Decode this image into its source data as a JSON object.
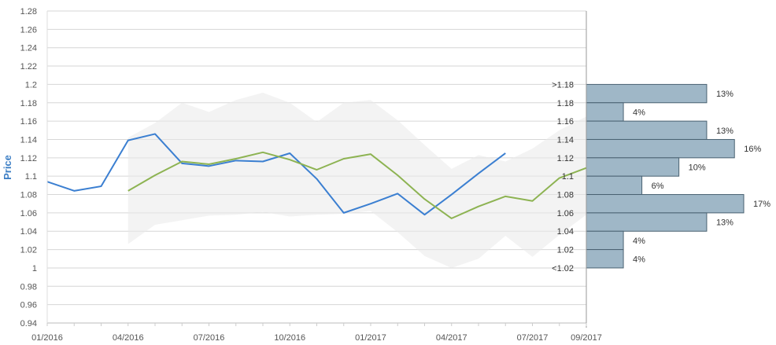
{
  "chart_data": {
    "type": "line",
    "ylabel": "Price",
    "ylim": [
      0.94,
      1.28
    ],
    "y_ticks": [
      "0.94",
      "0.96",
      "0.98",
      "1",
      "1.02",
      "1.04",
      "1.06",
      "1.08",
      "1.1",
      "1.12",
      "1.14",
      "1.16",
      "1.18",
      "1.2",
      "1.22",
      "1.24",
      "1.26",
      "1.28"
    ],
    "x_ticks": [
      {
        "label": "01/2016",
        "month": 0
      },
      {
        "label": "04/2016",
        "month": 3
      },
      {
        "label": "07/2016",
        "month": 6
      },
      {
        "label": "10/2016",
        "month": 9
      },
      {
        "label": "01/2017",
        "month": 12
      },
      {
        "label": "04/2017",
        "month": 15
      },
      {
        "label": "07/2017",
        "month": 18
      },
      {
        "label": "09/2017",
        "month": 20
      }
    ],
    "grid": "horizontal",
    "series": [
      {
        "color": "#3b7fd1",
        "points": [
          [
            "01/2016",
            1.094
          ],
          [
            "02/2016",
            1.084
          ],
          [
            "03/2016",
            1.089
          ],
          [
            "04/2016",
            1.139
          ],
          [
            "05/2016",
            1.146
          ],
          [
            "06/2016",
            1.114
          ],
          [
            "07/2016",
            1.111
          ],
          [
            "08/2016",
            1.117
          ],
          [
            "09/2016",
            1.116
          ],
          [
            "10/2016",
            1.125
          ],
          [
            "11/2016",
            1.097
          ],
          [
            "12/2016",
            1.06
          ],
          [
            "01/2017",
            1.07
          ],
          [
            "02/2017",
            1.081
          ],
          [
            "03/2017",
            1.058
          ],
          [
            "04/2017",
            1.08
          ],
          [
            "05/2017",
            1.103
          ],
          [
            "06/2017",
            1.125
          ]
        ]
      },
      {
        "color": "#8db352",
        "points": [
          [
            "04/2016",
            1.084
          ],
          [
            "05/2016",
            1.101
          ],
          [
            "06/2016",
            1.116
          ],
          [
            "07/2016",
            1.113
          ],
          [
            "08/2016",
            1.119
          ],
          [
            "09/2016",
            1.126
          ],
          [
            "10/2016",
            1.118
          ],
          [
            "11/2016",
            1.107
          ],
          [
            "12/2016",
            1.119
          ],
          [
            "01/2017",
            1.124
          ],
          [
            "02/2017",
            1.101
          ],
          [
            "03/2017",
            1.075
          ],
          [
            "04/2017",
            1.054
          ],
          [
            "05/2017",
            1.067
          ],
          [
            "06/2017",
            1.078
          ],
          [
            "07/2017",
            1.073
          ],
          [
            "08/2017",
            1.098
          ],
          [
            "09/2017",
            1.109
          ]
        ]
      }
    ],
    "band": {
      "color": "#e9e9e9",
      "upper": [
        [
          "04/2016",
          1.142
        ],
        [
          "05/2016",
          1.158
        ],
        [
          "06/2016",
          1.18
        ],
        [
          "07/2016",
          1.17
        ],
        [
          "08/2016",
          1.183
        ],
        [
          "09/2016",
          1.191
        ],
        [
          "10/2016",
          1.18
        ],
        [
          "11/2016",
          1.159
        ],
        [
          "12/2016",
          1.18
        ],
        [
          "01/2017",
          1.183
        ],
        [
          "02/2017",
          1.161
        ],
        [
          "03/2017",
          1.134
        ],
        [
          "04/2017",
          1.108
        ],
        [
          "05/2017",
          1.123
        ],
        [
          "06/2017",
          1.116
        ],
        [
          "07/2017",
          1.13
        ],
        [
          "08/2017",
          1.15
        ],
        [
          "09/2017",
          1.165
        ]
      ],
      "lower": [
        [
          "04/2016",
          1.026
        ],
        [
          "05/2016",
          1.047
        ],
        [
          "06/2016",
          1.052
        ],
        [
          "07/2016",
          1.057
        ],
        [
          "08/2016",
          1.058
        ],
        [
          "09/2016",
          1.061
        ],
        [
          "10/2016",
          1.056
        ],
        [
          "11/2016",
          1.058
        ],
        [
          "12/2016",
          1.059
        ],
        [
          "01/2017",
          1.062
        ],
        [
          "02/2017",
          1.039
        ],
        [
          "03/2017",
          1.013
        ],
        [
          "04/2017",
          1.0
        ],
        [
          "05/2017",
          1.01
        ],
        [
          "06/2017",
          1.035
        ],
        [
          "07/2017",
          1.012
        ],
        [
          "08/2017",
          1.036
        ],
        [
          "09/2017",
          1.058
        ]
      ]
    },
    "histogram": {
      "color": "#9fb7c7",
      "bins": [
        {
          "label": ">1.18",
          "from": 1.18,
          "to": 1.2,
          "value": 13,
          "value_label": "13%"
        },
        {
          "label": "1.18",
          "from": 1.16,
          "to": 1.18,
          "value": 4,
          "value_label": "4%"
        },
        {
          "label": "1.16",
          "from": 1.14,
          "to": 1.16,
          "value": 13,
          "value_label": "13%"
        },
        {
          "label": "1.14",
          "from": 1.12,
          "to": 1.14,
          "value": 16,
          "value_label": "16%"
        },
        {
          "label": "1.12",
          "from": 1.1,
          "to": 1.12,
          "value": 10,
          "value_label": "10%"
        },
        {
          "label": "1.1",
          "from": 1.08,
          "to": 1.1,
          "value": 6,
          "value_label": "6%"
        },
        {
          "label": "1.08",
          "from": 1.06,
          "to": 1.08,
          "value": 17,
          "value_label": "17%"
        },
        {
          "label": "1.06",
          "from": 1.04,
          "to": 1.06,
          "value": 13,
          "value_label": "13%"
        },
        {
          "label": "1.04",
          "from": 1.02,
          "to": 1.04,
          "value": 4,
          "value_label": "4%"
        },
        {
          "label": "1.02",
          "from": 1.0,
          "to": 1.02,
          "value": 4,
          "value_label": "4%"
        },
        {
          "label": "<1.02",
          "from": 1.0,
          "to": 1.0,
          "value": null,
          "value_label": ""
        }
      ]
    }
  }
}
